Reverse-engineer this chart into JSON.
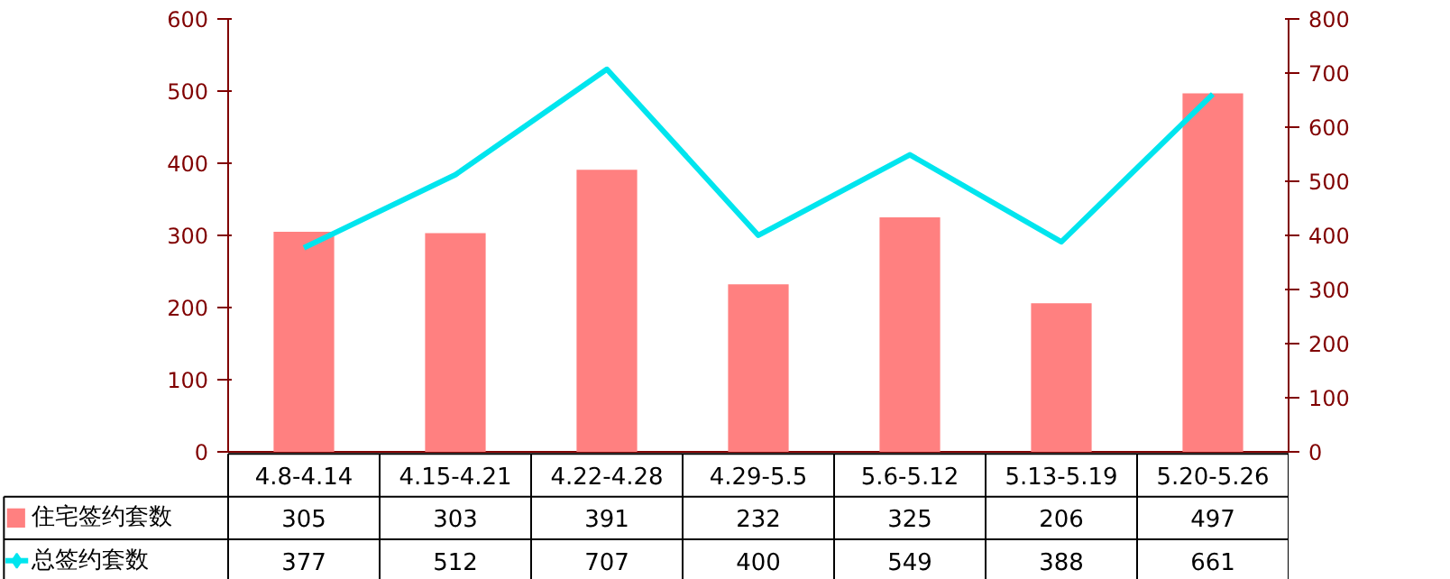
{
  "chart_data": {
    "type": "bar",
    "categories": [
      "4.8-4.14",
      "4.15-4.21",
      "4.22-4.28",
      "4.29-5.5",
      "5.6-5.12",
      "5.13-5.19",
      "5.20-5.26"
    ],
    "series": [
      {
        "name": "住宅签约套数",
        "color": "#ff8080",
        "values": [
          305,
          303,
          391,
          232,
          325,
          206,
          497
        ]
      },
      {
        "name": "总签约套数",
        "type": "line",
        "axis": "y2",
        "color": "#00e5ee",
        "values": [
          377,
          512,
          707,
          400,
          549,
          388,
          661
        ]
      }
    ],
    "ylim": [
      0,
      600
    ],
    "yticks": [
      0,
      100,
      200,
      300,
      400,
      500,
      600
    ],
    "y2lim": [
      0,
      800
    ],
    "y2ticks": [
      0,
      100,
      200,
      300,
      400,
      500,
      600,
      700,
      800
    ],
    "grid": false,
    "legend": "bottom",
    "data_labels": true,
    "marker": "none",
    "line_style": "solid"
  }
}
